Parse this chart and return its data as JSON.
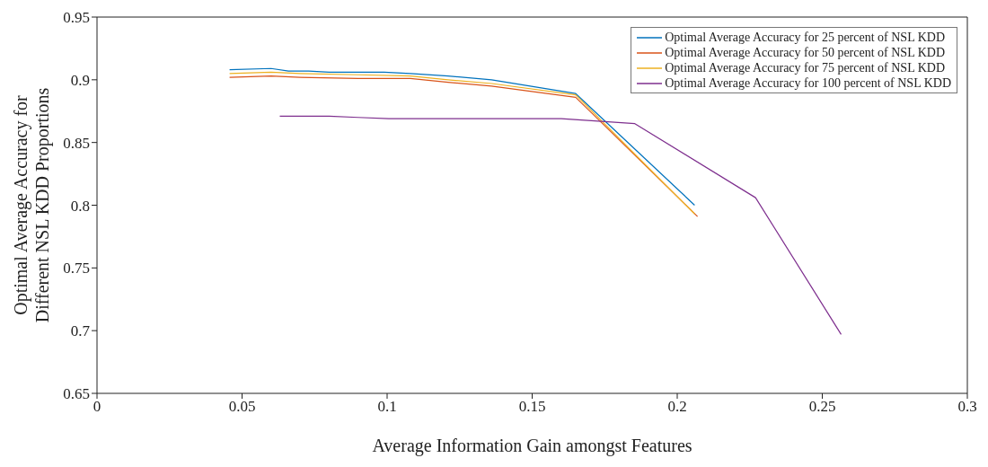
{
  "chart_data": {
    "type": "line",
    "xlabel": "Average Information Gain amongst Features",
    "ylabel": "Optimal Average Accuracy for Different NSL KDD Proportions",
    "xlim": [
      0,
      0.3
    ],
    "xticks": [
      0,
      0.05,
      0.1,
      0.15,
      0.2,
      0.25,
      0.3
    ],
    "ylim": [
      0.65,
      0.95
    ],
    "yticks": [
      0.65,
      0.7,
      0.75,
      0.8,
      0.85,
      0.9,
      0.95
    ],
    "grid": false,
    "legend": "top right",
    "marker": "none",
    "line_style": "solid",
    "series": [
      {
        "name": "Optimal Average Accuracy for 25 percent of NSL KDD",
        "color": "#0072bd",
        "x": [
          0.0457,
          0.06,
          0.066,
          0.073,
          0.08,
          0.0866,
          0.099,
          0.108,
          0.121,
          0.136,
          0.165,
          0.206
        ],
        "values": [
          0.908,
          0.909,
          0.907,
          0.907,
          0.906,
          0.906,
          0.906,
          0.905,
          0.903,
          0.9,
          0.889,
          0.8
        ]
      },
      {
        "name": "Optimal Average Accuracy for 50 percent of NSL KDD",
        "color": "#d95319",
        "x": [
          0.0457,
          0.06,
          0.07,
          0.09,
          0.108,
          0.121,
          0.136,
          0.165,
          0.207
        ],
        "values": [
          0.902,
          0.903,
          0.902,
          0.901,
          0.901,
          0.898,
          0.895,
          0.886,
          0.791
        ]
      },
      {
        "name": "Optimal Average Accuracy for 75 percent of NSL KDD",
        "color": "#edb120",
        "x": [
          0.0457,
          0.06,
          0.07,
          0.09,
          0.108,
          0.121,
          0.136,
          0.165,
          0.206
        ],
        "values": [
          0.905,
          0.906,
          0.905,
          0.904,
          0.903,
          0.9,
          0.897,
          0.888,
          0.793
        ]
      },
      {
        "name": "Optimal Average Accuracy for 100 percent of NSL KDD",
        "color": "#7e2f8e",
        "x": [
          0.063,
          0.08,
          0.09,
          0.1006,
          0.16,
          0.1854,
          0.227,
          0.2565
        ],
        "values": [
          0.871,
          0.871,
          0.87,
          0.869,
          0.869,
          0.865,
          0.806,
          0.697
        ]
      }
    ]
  }
}
